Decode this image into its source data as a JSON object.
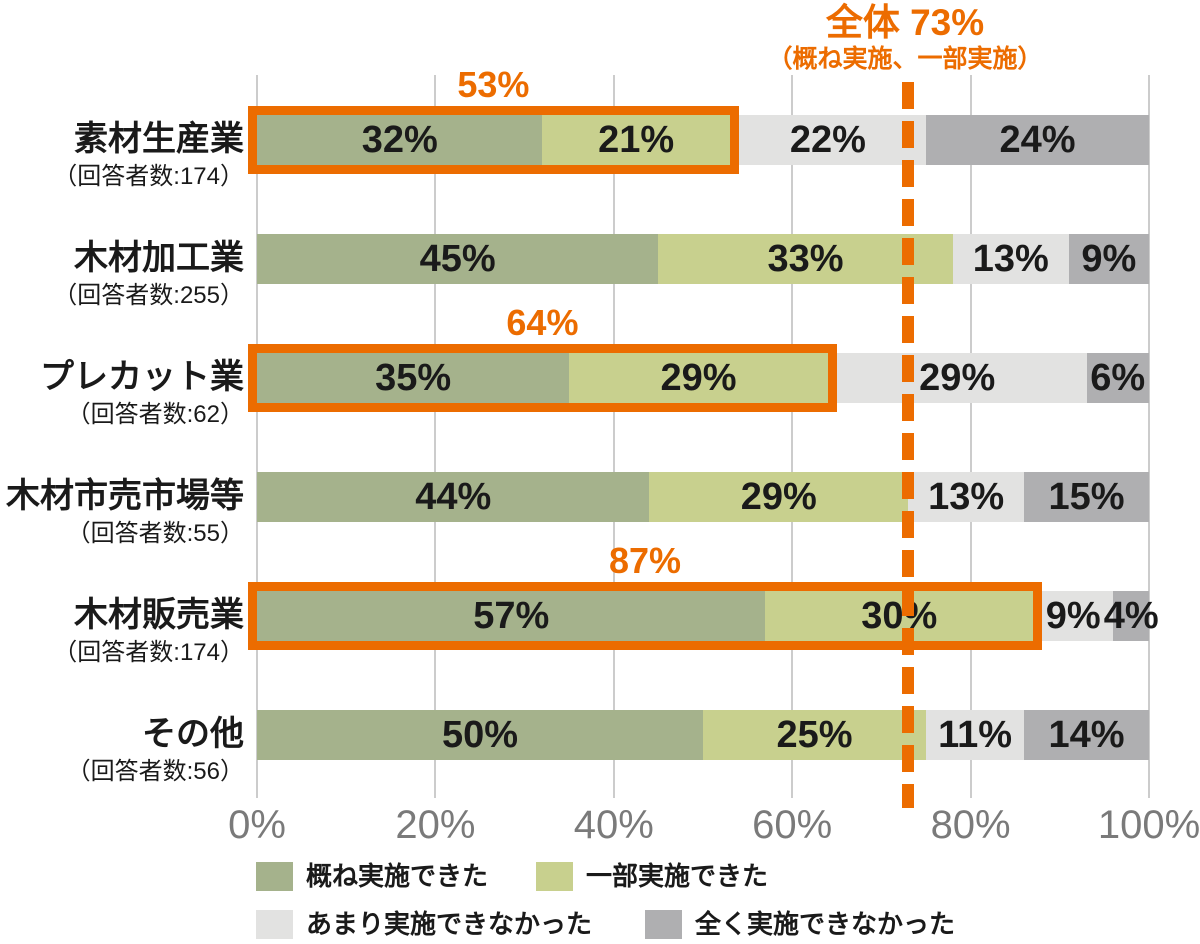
{
  "chart_data": {
    "type": "bar",
    "orientation": "horizontal",
    "stacked": true,
    "title": "全体 73%",
    "subtitle": "（概ね実施、一部実施）",
    "overall_line_pct": 73,
    "xlim": [
      0,
      100
    ],
    "x_ticks": [
      "0%",
      "20%",
      "40%",
      "60%",
      "80%",
      "100%"
    ],
    "grid": true,
    "legend_position": "bottom",
    "legend": [
      {
        "label": "概ね実施できた",
        "color": "#a5b28c"
      },
      {
        "label": "一部実施できた",
        "color": "#c8d08e"
      },
      {
        "label": "あまり実施できなかった",
        "color": "#e2e2e1"
      },
      {
        "label": "全く実施できなかった",
        "color": "#afafb1"
      }
    ],
    "rows": [
      {
        "category": "素材生産業",
        "respondents": "（回答者数:174）",
        "values": [
          32,
          21,
          22,
          24
        ],
        "highlight": {
          "total_label": "53%"
        }
      },
      {
        "category": "木材加工業",
        "respondents": "（回答者数:255）",
        "values": [
          45,
          33,
          13,
          9
        ],
        "highlight": null
      },
      {
        "category": "プレカット業",
        "respondents": "（回答者数:62）",
        "values": [
          35,
          29,
          29,
          6
        ],
        "highlight": {
          "total_label": "64%"
        }
      },
      {
        "category": "木材市売市場等",
        "respondents": "（回答者数:55）",
        "values": [
          44,
          29,
          13,
          15
        ],
        "highlight": null
      },
      {
        "category": "木材販売業",
        "respondents": "（回答者数:174）",
        "values": [
          57,
          30,
          9,
          4
        ],
        "highlight": {
          "total_label": "87%"
        }
      },
      {
        "category": "その他",
        "respondents": "（回答者数:56）",
        "values": [
          50,
          25,
          11,
          14
        ],
        "highlight": null
      }
    ],
    "colors": {
      "accent_orange": "#ec6c00",
      "gridline": "#cccccc",
      "axis_text": "#7a7a7a",
      "label_text": "#1a1a1a",
      "background": "#ffffff"
    }
  }
}
